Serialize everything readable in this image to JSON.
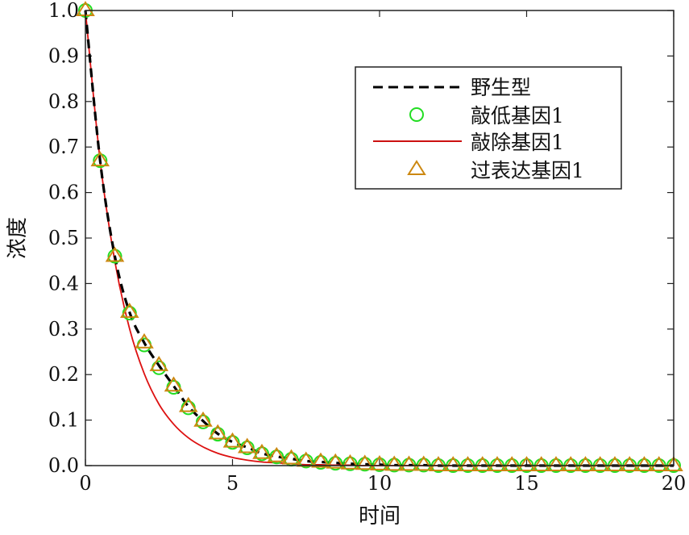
{
  "chart_data": {
    "type": "line",
    "title": "",
    "xlabel": "时间",
    "ylabel": "浓度",
    "xlim": [
      0,
      20
    ],
    "ylim": [
      0,
      1.0
    ],
    "xticks": [
      "0",
      "5",
      "10",
      "15",
      "20"
    ],
    "yticks": [
      "0.0",
      "0.1",
      "0.2",
      "0.3",
      "0.4",
      "0.5",
      "0.6",
      "0.7",
      "0.8",
      "0.9",
      "1.0"
    ],
    "x_step": 0.5,
    "legend_position": "top-right",
    "series": [
      {
        "name": "野生型",
        "style": "dashed",
        "color": "#000000",
        "values": [
          1.0,
          0.67,
          0.46,
          0.337,
          0.27,
          0.22,
          0.175,
          0.13,
          0.098,
          0.07,
          0.052,
          0.04,
          0.027,
          0.02,
          0.015,
          0.01,
          0.008,
          0.006,
          0.004,
          0.003,
          0.002,
          0.001,
          0.001,
          0.001,
          0,
          0,
          0,
          0,
          0,
          0,
          0,
          0,
          0,
          0,
          0,
          0,
          0,
          0,
          0,
          0,
          0
        ]
      },
      {
        "name": "敲低基因1",
        "style": "circle",
        "color": "#22dd22",
        "values": [
          1.0,
          0.67,
          0.46,
          0.335,
          0.265,
          0.215,
          0.172,
          0.127,
          0.096,
          0.069,
          0.051,
          0.039,
          0.026,
          0.019,
          0.014,
          0.01,
          0.007,
          0.005,
          0.004,
          0.003,
          0.002,
          0.001,
          0.001,
          0.001,
          0,
          0,
          0,
          0,
          0,
          0,
          0,
          0,
          0,
          0,
          0,
          0,
          0,
          0,
          0,
          0,
          0
        ]
      },
      {
        "name": "敲除基因1",
        "style": "solid",
        "color": "#dd1111",
        "values": [
          1.0,
          0.67,
          0.449,
          0.301,
          0.202,
          0.135,
          0.091,
          0.061,
          0.041,
          0.027,
          0.018,
          0.012,
          0.008,
          0.006,
          0.004,
          0.002,
          0.002,
          0.001,
          0.001,
          0,
          0,
          0,
          0,
          0,
          0,
          0,
          0,
          0,
          0,
          0,
          0,
          0,
          0,
          0,
          0,
          0,
          0,
          0,
          0,
          0,
          0
        ]
      },
      {
        "name": "过表达基因1",
        "style": "triangle",
        "color": "#cc8811",
        "values": [
          1.0,
          0.67,
          0.46,
          0.337,
          0.27,
          0.22,
          0.175,
          0.13,
          0.098,
          0.07,
          0.052,
          0.04,
          0.027,
          0.02,
          0.015,
          0.01,
          0.008,
          0.006,
          0.004,
          0.003,
          0.002,
          0.001,
          0.001,
          0.001,
          0,
          0,
          0,
          0,
          0,
          0,
          0,
          0,
          0,
          0,
          0,
          0,
          0,
          0,
          0,
          0,
          0
        ]
      }
    ]
  }
}
